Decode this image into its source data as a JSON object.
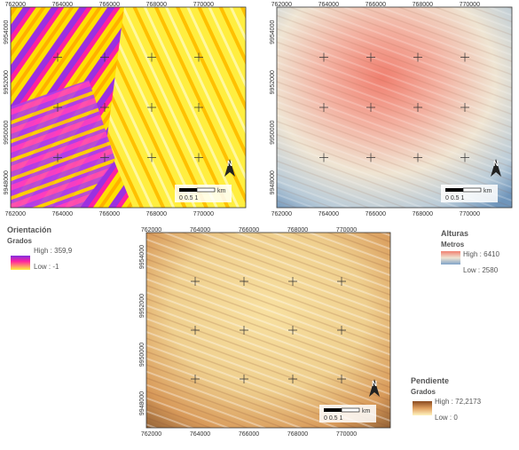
{
  "panels": [
    {
      "legend": {
        "title": "Orientación",
        "unit": "Grados",
        "high": "High : 359,9",
        "low": "Low : -1"
      },
      "scale": {
        "unit": "km",
        "labels": "0 0.5 1"
      },
      "xticks": [
        "762000",
        "764000",
        "766000",
        "768000",
        "770000"
      ],
      "yticks": [
        "9954000",
        "9952000",
        "9950000",
        "9948000"
      ]
    },
    {
      "legend": {
        "title": "Alturas",
        "unit": "Metros",
        "high": "High : 6410",
        "low": "Low : 2580"
      },
      "scale": {
        "unit": "km",
        "labels": "0 0.5 1"
      },
      "xticks": [
        "762000",
        "764000",
        "766000",
        "768000",
        "770000"
      ],
      "yticks": [
        "9954000",
        "9952000",
        "9950000",
        "9948000"
      ]
    },
    {
      "legend": {
        "title": "Pendiente",
        "unit": "Grados",
        "high": "High : 72,2173",
        "low": "Low : 0"
      },
      "scale": {
        "unit": "km",
        "labels": "0 0.5 1"
      },
      "xticks": [
        "762000",
        "764000",
        "766000",
        "768000",
        "770000"
      ],
      "yticks": [
        "9954000",
        "9952000",
        "9950000",
        "9948000"
      ]
    }
  ]
}
